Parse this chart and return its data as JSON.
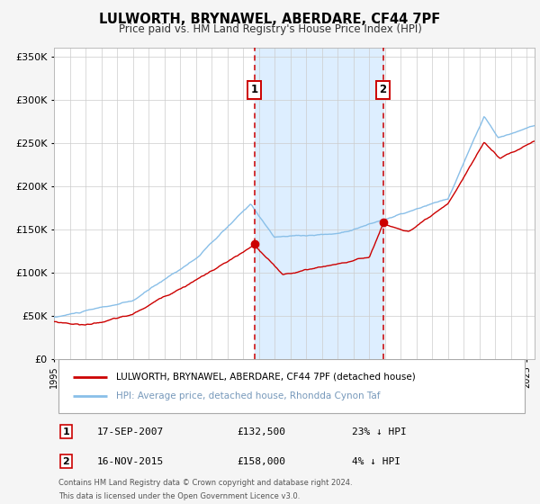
{
  "title": "LULWORTH, BRYNAWEL, ABERDARE, CF44 7PF",
  "subtitle": "Price paid vs. HM Land Registry's House Price Index (HPI)",
  "ylim": [
    0,
    360000
  ],
  "yticks": [
    0,
    50000,
    100000,
    150000,
    200000,
    250000,
    300000,
    350000
  ],
  "ytick_labels": [
    "£0",
    "£50K",
    "£100K",
    "£150K",
    "£200K",
    "£250K",
    "£300K",
    "£350K"
  ],
  "xlim_start": 1995.0,
  "xlim_end": 2025.5,
  "sale1_year": 2007.72,
  "sale1_price": 132500,
  "sale2_year": 2015.88,
  "sale2_price": 158000,
  "sale1_date": "17-SEP-2007",
  "sale1_hpi_pct": "23% ↓ HPI",
  "sale2_date": "16-NOV-2015",
  "sale2_hpi_pct": "4% ↓ HPI",
  "house_line_color": "#cc0000",
  "hpi_line_color": "#89bfe8",
  "shade_color": "#ddeeff",
  "vline_color": "#cc0000",
  "legend_house_label": "LULWORTH, BRYNAWEL, ABERDARE, CF44 7PF (detached house)",
  "legend_hpi_label": "HPI: Average price, detached house, Rhondda Cynon Taf",
  "footnote1": "Contains HM Land Registry data © Crown copyright and database right 2024.",
  "footnote2": "This data is licensed under the Open Government Licence v3.0.",
  "background_color": "#f5f5f5",
  "plot_bg_color": "#ffffff",
  "grid_color": "#cccccc"
}
